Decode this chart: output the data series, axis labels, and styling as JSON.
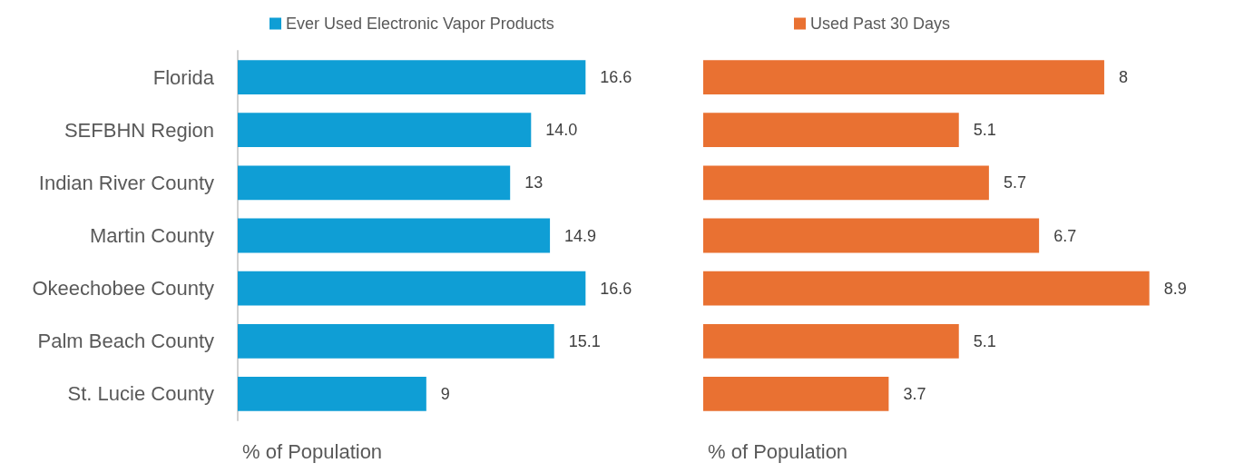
{
  "chart_data": [
    {
      "type": "bar",
      "orientation": "horizontal",
      "categories": [
        "Florida",
        "SEFBHN Region",
        "Indian River County",
        "Martin County",
        "Okeechobee County",
        "Palm Beach County",
        "St. Lucie County"
      ],
      "series": [
        {
          "name": "Ever Used Electronic Vapor Products",
          "color": "#0f9ed5",
          "values": [
            16.6,
            14.0,
            13,
            14.9,
            16.6,
            15.1,
            9
          ],
          "value_labels": [
            "16.6",
            "14.0",
            "13",
            "14.9",
            "16.6",
            "15.1",
            "9"
          ]
        }
      ],
      "xlabel": "% of Population",
      "legend": "top",
      "tick_labels": "y"
    },
    {
      "type": "bar",
      "orientation": "horizontal",
      "categories": [
        null,
        null,
        null,
        null,
        null,
        null,
        null
      ],
      "series": [
        {
          "name": "Used Past 30 Days",
          "color": "#e97132",
          "values": [
            8,
            5.1,
            5.7,
            6.7,
            8.9,
            5.1,
            3.7
          ],
          "value_labels": [
            "8",
            "5.1",
            "5.7",
            "6.7",
            "8.9",
            "5.1",
            "3.7"
          ]
        }
      ],
      "xlabel": "% of Population",
      "legend": "top",
      "tick_labels": false
    }
  ]
}
